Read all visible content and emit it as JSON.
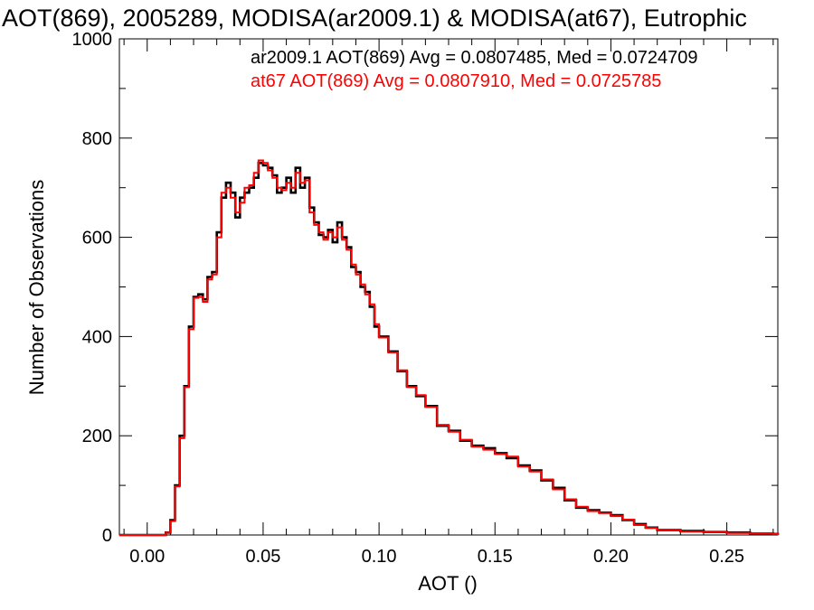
{
  "chart_data": {
    "type": "line",
    "title": "AOT(869), 2005289, MODISA(ar2009.1) & MODISA(at67), Eutrophic",
    "xlabel": "AOT ()",
    "ylabel": "Number of Observations",
    "xlim": [
      -0.012,
      0.272
    ],
    "ylim": [
      0,
      1000
    ],
    "xticks": [
      0.0,
      0.05,
      0.1,
      0.15,
      0.2,
      0.25
    ],
    "xtick_labels": [
      "0.00",
      "0.05",
      "0.10",
      "0.15",
      "0.20",
      "0.25"
    ],
    "yticks": [
      0,
      200,
      400,
      600,
      800,
      1000
    ],
    "ytick_labels": [
      "0",
      "200",
      "400",
      "600",
      "800",
      "1000"
    ],
    "grid": false,
    "legend_placement": "top-right",
    "annotations": [
      {
        "text": "ar2009.1 AOT(869) Avg = 0.0807485, Med = 0.0724709",
        "color": "#000000"
      },
      {
        "text": "at67 AOT(869) Avg = 0.0807910, Med = 0.0725785",
        "color": "#ff0000"
      }
    ],
    "series": [
      {
        "color": "#000000",
        "x": [
          0.0,
          0.005,
          0.008,
          0.01,
          0.012,
          0.014,
          0.016,
          0.018,
          0.02,
          0.022,
          0.024,
          0.026,
          0.028,
          0.03,
          0.032,
          0.034,
          0.036,
          0.038,
          0.04,
          0.042,
          0.044,
          0.046,
          0.048,
          0.05,
          0.052,
          0.054,
          0.056,
          0.058,
          0.06,
          0.062,
          0.064,
          0.066,
          0.068,
          0.07,
          0.072,
          0.074,
          0.076,
          0.078,
          0.08,
          0.082,
          0.084,
          0.086,
          0.088,
          0.09,
          0.092,
          0.094,
          0.096,
          0.098,
          0.1,
          0.104,
          0.108,
          0.112,
          0.116,
          0.12,
          0.125,
          0.13,
          0.135,
          0.14,
          0.145,
          0.15,
          0.155,
          0.16,
          0.165,
          0.17,
          0.175,
          0.18,
          0.185,
          0.19,
          0.195,
          0.2,
          0.205,
          0.21,
          0.215,
          0.22,
          0.23,
          0.24,
          0.25,
          0.26,
          0.27
        ],
        "y": [
          0,
          0,
          5,
          30,
          100,
          200,
          300,
          420,
          480,
          485,
          475,
          520,
          530,
          610,
          680,
          710,
          690,
          640,
          680,
          690,
          700,
          720,
          750,
          745,
          740,
          725,
          690,
          700,
          720,
          690,
          740,
          700,
          720,
          660,
          630,
          605,
          600,
          615,
          590,
          630,
          600,
          580,
          540,
          530,
          500,
          490,
          460,
          420,
          400,
          370,
          330,
          300,
          280,
          260,
          220,
          210,
          190,
          180,
          175,
          165,
          155,
          140,
          130,
          110,
          95,
          70,
          55,
          50,
          45,
          40,
          30,
          22,
          15,
          10,
          8,
          6,
          5,
          3,
          2
        ]
      },
      {
        "color": "#ff0000",
        "x": [
          0.0,
          0.005,
          0.008,
          0.01,
          0.012,
          0.014,
          0.016,
          0.018,
          0.02,
          0.022,
          0.024,
          0.026,
          0.028,
          0.03,
          0.032,
          0.034,
          0.036,
          0.038,
          0.04,
          0.042,
          0.044,
          0.046,
          0.048,
          0.05,
          0.052,
          0.054,
          0.056,
          0.058,
          0.06,
          0.062,
          0.064,
          0.066,
          0.068,
          0.07,
          0.072,
          0.074,
          0.076,
          0.078,
          0.08,
          0.082,
          0.084,
          0.086,
          0.088,
          0.09,
          0.092,
          0.094,
          0.096,
          0.098,
          0.1,
          0.104,
          0.108,
          0.112,
          0.116,
          0.12,
          0.125,
          0.13,
          0.135,
          0.14,
          0.145,
          0.15,
          0.155,
          0.16,
          0.165,
          0.17,
          0.175,
          0.18,
          0.185,
          0.19,
          0.195,
          0.2,
          0.205,
          0.21,
          0.215,
          0.22,
          0.23,
          0.24,
          0.25,
          0.26,
          0.27
        ],
        "y": [
          0,
          0,
          5,
          28,
          98,
          195,
          298,
          415,
          478,
          480,
          470,
          515,
          525,
          600,
          690,
          700,
          680,
          650,
          670,
          700,
          705,
          730,
          755,
          750,
          735,
          720,
          700,
          695,
          710,
          700,
          730,
          710,
          715,
          650,
          625,
          610,
          595,
          610,
          600,
          620,
          595,
          575,
          545,
          525,
          505,
          485,
          465,
          425,
          398,
          368,
          332,
          298,
          282,
          258,
          222,
          208,
          192,
          178,
          172,
          163,
          158,
          138,
          128,
          112,
          92,
          72,
          57,
          48,
          44,
          38,
          31,
          20,
          14,
          11,
          7,
          6,
          4,
          3,
          2
        ]
      }
    ]
  }
}
